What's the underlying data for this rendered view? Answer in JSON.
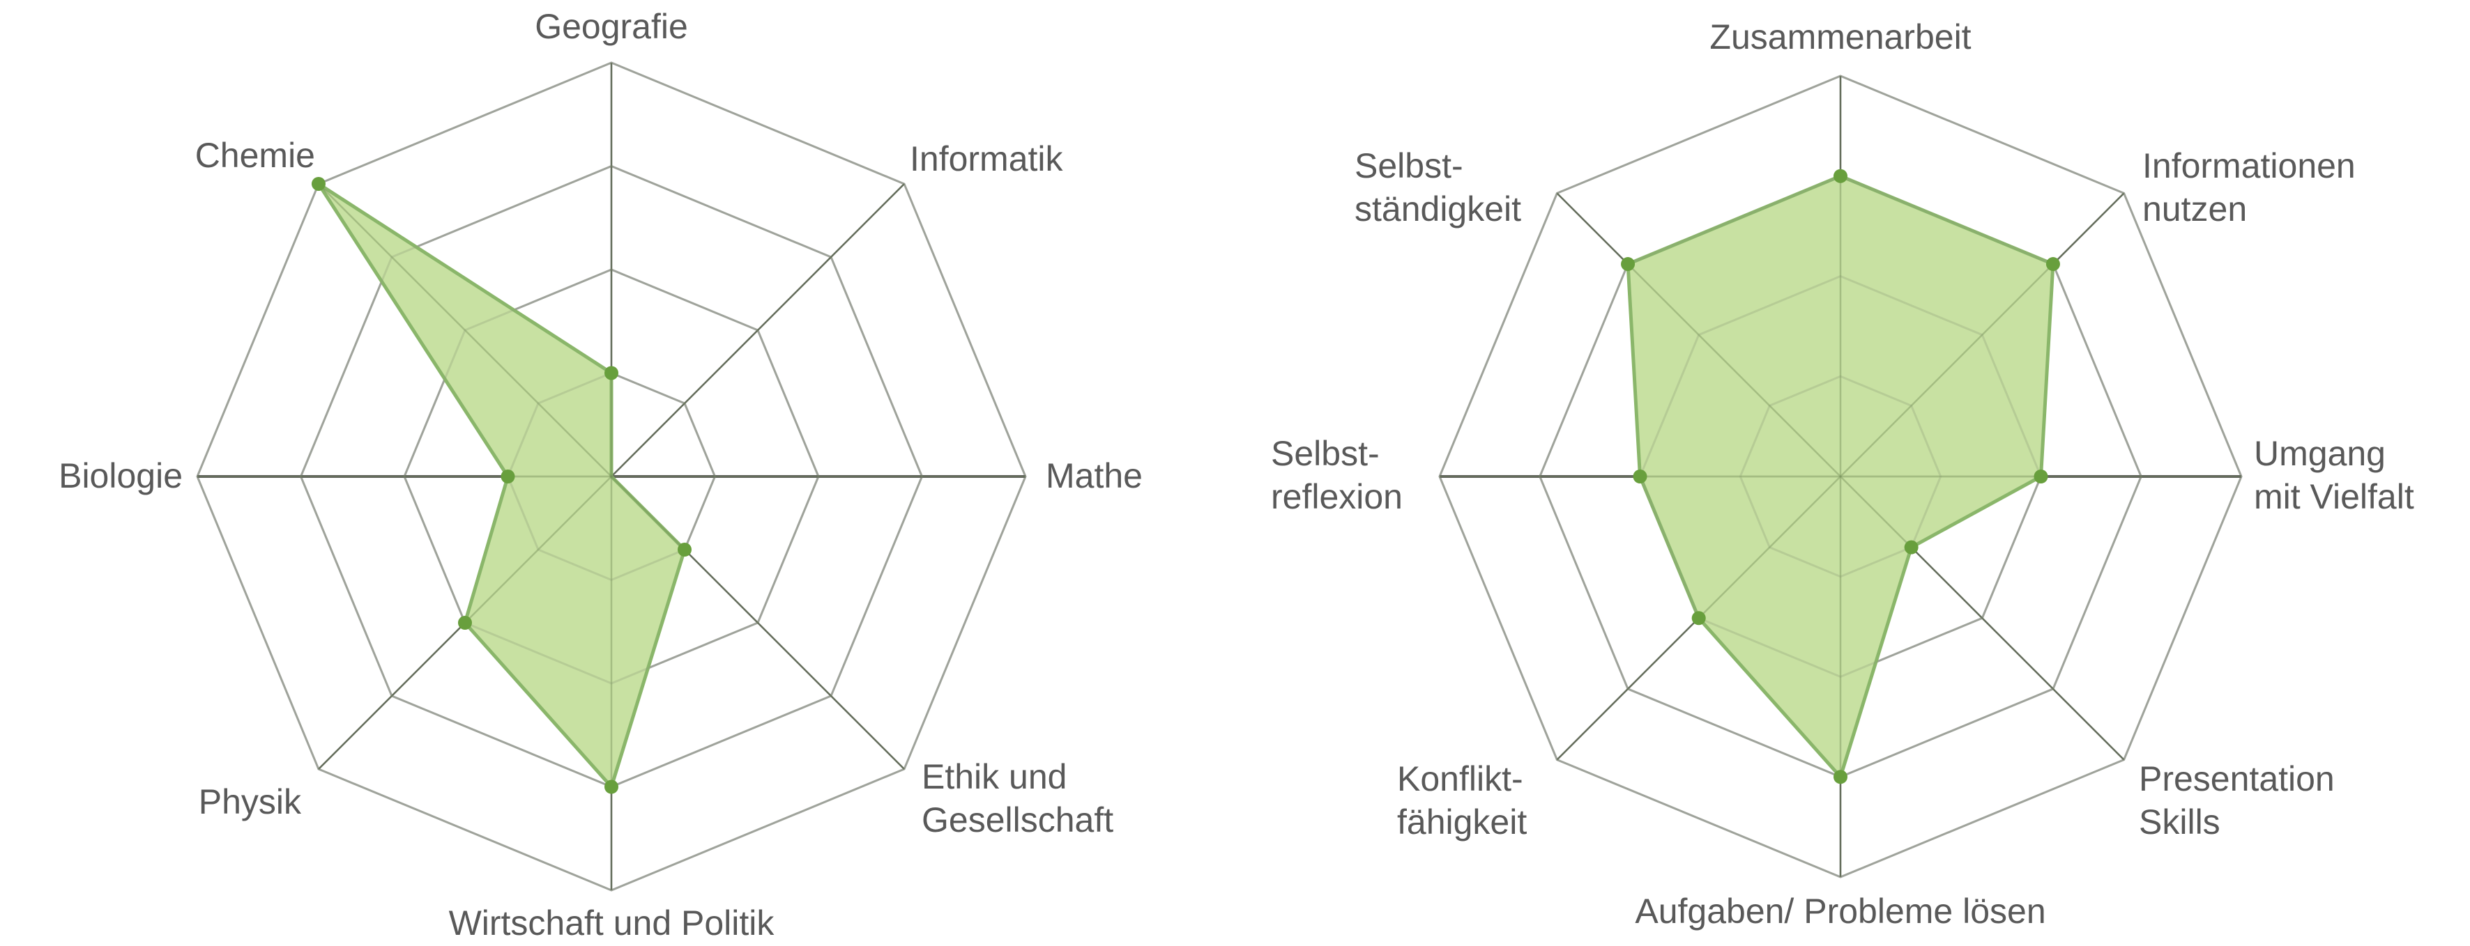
{
  "colors": {
    "fill": "#c5df9d",
    "line": "#8ab66a",
    "marker": "#689f3d",
    "grid": "#a6a6a6",
    "axis": "#5f5f5f",
    "label": "#595959"
  },
  "chart_data": [
    {
      "type": "radar",
      "title": "",
      "max": 4,
      "rings": 4,
      "categories": [
        "Geografie",
        "Informatik",
        "Mathe",
        "Ethik und Gesellschaft",
        "Wirtschaft und Politik",
        "Physik",
        "Biologie",
        "Chemie"
      ],
      "values": [
        1,
        0,
        0,
        1,
        3,
        2,
        1,
        4
      ],
      "labels": [
        {
          "lines": [
            "Geografie"
          ]
        },
        {
          "lines": [
            "Informatik"
          ]
        },
        {
          "lines": [
            "Mathe"
          ]
        },
        {
          "lines": [
            "Ethik und",
            "Gesellschaft"
          ]
        },
        {
          "lines": [
            "Wirtschaft und Politik"
          ]
        },
        {
          "lines": [
            "Physik"
          ]
        },
        {
          "lines": [
            "Biologie"
          ]
        },
        {
          "lines": [
            "Chemie"
          ]
        }
      ]
    },
    {
      "type": "radar",
      "title": "",
      "max": 4,
      "rings": 4,
      "categories": [
        "Zusammenarbeit",
        "Informationen nutzen",
        "Umgang mit Vielfalt",
        "Presentation Skills",
        "Aufgaben/ Probleme lösen",
        "Konfliktfähigkeit",
        "Selbstreflexion",
        "Selbstständigkeit"
      ],
      "values": [
        3,
        3,
        2,
        1,
        3,
        2,
        2,
        3
      ],
      "labels": [
        {
          "lines": [
            "Zusammenarbeit"
          ]
        },
        {
          "lines": [
            "Informationen",
            "nutzen"
          ]
        },
        {
          "lines": [
            "Umgang",
            "mit Vielfalt"
          ]
        },
        {
          "lines": [
            "Presentation",
            "Skills"
          ]
        },
        {
          "lines": [
            "Aufgaben/ Probleme lösen"
          ]
        },
        {
          "lines": [
            "Konflikt-",
            "fähigkeit"
          ]
        },
        {
          "lines": [
            "Selbst-",
            "reflexion"
          ]
        },
        {
          "lines": [
            "Selbst-",
            "ständigkeit"
          ]
        }
      ]
    }
  ]
}
